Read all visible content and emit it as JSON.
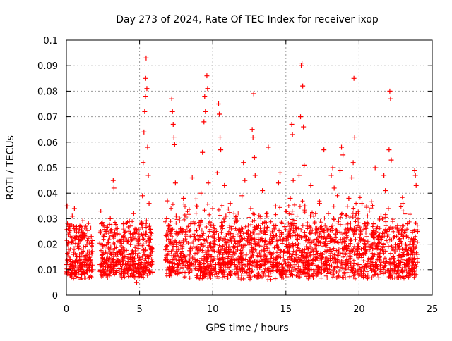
{
  "chart_data": {
    "type": "scatter",
    "title": "Day 273 of 2024, Rate Of TEC Index for receiver ixop",
    "xlabel": "GPS time / hours",
    "ylabel": "ROTI / TECUs",
    "xlim": [
      0,
      25
    ],
    "ylim": [
      0,
      0.1
    ],
    "xticks": [
      "0",
      "5",
      "10",
      "15",
      "20",
      "25"
    ],
    "xtick_values": [
      0,
      5,
      10,
      15,
      20,
      25
    ],
    "yticks": [
      "0",
      "0.01",
      "0.02",
      "0.03",
      "0.04",
      "0.05",
      "0.06",
      "0.07",
      "0.08",
      "0.09",
      "0.1"
    ],
    "ytick_values": [
      0,
      0.01,
      0.02,
      0.03,
      0.04,
      0.05,
      0.06,
      0.07,
      0.08,
      0.09,
      0.1
    ],
    "grid": true,
    "marker": "+",
    "color": "#ff0000",
    "series": [
      {
        "points": [
          [
            0.0,
            0.012
          ],
          [
            0.05,
            0.035
          ],
          [
            0.1,
            0.009
          ],
          [
            0.15,
            0.018
          ],
          [
            0.2,
            0.027
          ],
          [
            0.25,
            0.014
          ],
          [
            0.3,
            0.008
          ],
          [
            0.35,
            0.021
          ],
          [
            0.4,
            0.031
          ],
          [
            0.45,
            0.011
          ],
          [
            0.5,
            0.016
          ],
          [
            0.55,
            0.034
          ],
          [
            0.6,
            0.009
          ],
          [
            0.65,
            0.019
          ],
          [
            0.7,
            0.026
          ],
          [
            0.75,
            0.013
          ],
          [
            0.8,
            0.007
          ],
          [
            0.85,
            0.022
          ],
          [
            0.9,
            0.015
          ],
          [
            0.95,
            0.01
          ],
          [
            1.0,
            0.018
          ],
          [
            1.05,
            0.012
          ],
          [
            1.1,
            0.024
          ],
          [
            1.2,
            0.009
          ],
          [
            1.3,
            0.014
          ],
          [
            1.4,
            0.02
          ],
          [
            1.5,
            0.011
          ],
          [
            1.6,
            0.016
          ],
          [
            1.7,
            0.023
          ],
          [
            1.75,
            0.01
          ],
          [
            2.3,
            0.012
          ],
          [
            2.35,
            0.033
          ],
          [
            2.4,
            0.028
          ],
          [
            2.45,
            0.009
          ],
          [
            2.5,
            0.019
          ],
          [
            2.6,
            0.014
          ],
          [
            2.7,
            0.025
          ],
          [
            2.8,
            0.011
          ],
          [
            2.9,
            0.017
          ],
          [
            3.0,
            0.03
          ],
          [
            3.1,
            0.013
          ],
          [
            3.2,
            0.045
          ],
          [
            3.25,
            0.042
          ],
          [
            3.3,
            0.02
          ],
          [
            3.4,
            0.009
          ],
          [
            3.5,
            0.016
          ],
          [
            3.6,
            0.024
          ],
          [
            3.7,
            0.012
          ],
          [
            3.8,
            0.018
          ],
          [
            3.9,
            0.028
          ],
          [
            4.0,
            0.015
          ],
          [
            4.1,
            0.01
          ],
          [
            4.2,
            0.021
          ],
          [
            4.3,
            0.029
          ],
          [
            4.4,
            0.013
          ],
          [
            4.5,
            0.017
          ],
          [
            4.6,
            0.032
          ],
          [
            4.7,
            0.011
          ],
          [
            4.8,
            0.005
          ],
          [
            4.9,
            0.02
          ],
          [
            5.1,
            0.014
          ],
          [
            5.15,
            0.028
          ],
          [
            5.2,
            0.039
          ],
          [
            5.25,
            0.052
          ],
          [
            5.3,
            0.064
          ],
          [
            5.35,
            0.072
          ],
          [
            5.4,
            0.078
          ],
          [
            5.42,
            0.085
          ],
          [
            5.45,
            0.093
          ],
          [
            5.5,
            0.081
          ],
          [
            5.55,
            0.058
          ],
          [
            5.6,
            0.047
          ],
          [
            5.65,
            0.036
          ],
          [
            5.7,
            0.022
          ],
          [
            5.75,
            0.012
          ],
          [
            5.8,
            0.018
          ],
          [
            6.8,
            0.014
          ],
          [
            6.85,
            0.03
          ],
          [
            6.9,
            0.037
          ],
          [
            7.0,
            0.022
          ],
          [
            7.05,
            0.011
          ],
          [
            7.1,
            0.025
          ],
          [
            7.2,
            0.077
          ],
          [
            7.25,
            0.072
          ],
          [
            7.3,
            0.067
          ],
          [
            7.35,
            0.062
          ],
          [
            7.4,
            0.059
          ],
          [
            7.45,
            0.044
          ],
          [
            7.5,
            0.031
          ],
          [
            7.6,
            0.012
          ],
          [
            7.7,
            0.018
          ],
          [
            7.8,
            0.026
          ],
          [
            7.9,
            0.009
          ],
          [
            8.0,
            0.038
          ],
          [
            8.1,
            0.015
          ],
          [
            8.2,
            0.021
          ],
          [
            8.3,
            0.011
          ],
          [
            8.4,
            0.016
          ],
          [
            8.5,
            0.028
          ],
          [
            8.6,
            0.046
          ],
          [
            8.7,
            0.019
          ],
          [
            8.8,
            0.013
          ],
          [
            8.9,
            0.035
          ],
          [
            9.0,
            0.022
          ],
          [
            9.1,
            0.012
          ],
          [
            9.2,
            0.04
          ],
          [
            9.3,
            0.056
          ],
          [
            9.4,
            0.068
          ],
          [
            9.45,
            0.078
          ],
          [
            9.5,
            0.072
          ],
          [
            9.6,
            0.086
          ],
          [
            9.65,
            0.081
          ],
          [
            9.7,
            0.044
          ],
          [
            9.8,
            0.025
          ],
          [
            9.9,
            0.015
          ],
          [
            10.0,
            0.034
          ],
          [
            10.1,
            0.021
          ],
          [
            10.2,
            0.012
          ],
          [
            10.3,
            0.048
          ],
          [
            10.4,
            0.075
          ],
          [
            10.45,
            0.071
          ],
          [
            10.5,
            0.062
          ],
          [
            10.55,
            0.057
          ],
          [
            10.6,
            0.027
          ],
          [
            10.7,
            0.016
          ],
          [
            10.8,
            0.043
          ],
          [
            10.9,
            0.031
          ],
          [
            11.0,
            0.011
          ],
          [
            11.1,
            0.019
          ],
          [
            11.2,
            0.036
          ],
          [
            11.3,
            0.014
          ],
          [
            11.4,
            0.023
          ],
          [
            11.5,
            0.012
          ],
          [
            11.6,
            0.029
          ],
          [
            11.7,
            0.018
          ],
          [
            11.8,
            0.01
          ],
          [
            11.9,
            0.025
          ],
          [
            12.0,
            0.039
          ],
          [
            12.1,
            0.052
          ],
          [
            12.2,
            0.045
          ],
          [
            12.3,
            0.016
          ],
          [
            12.4,
            0.021
          ],
          [
            12.5,
            0.012
          ],
          [
            12.6,
            0.034
          ],
          [
            12.7,
            0.065
          ],
          [
            12.75,
            0.062
          ],
          [
            12.8,
            0.079
          ],
          [
            12.85,
            0.054
          ],
          [
            12.9,
            0.047
          ],
          [
            13.0,
            0.027
          ],
          [
            13.1,
            0.015
          ],
          [
            13.2,
            0.011
          ],
          [
            13.3,
            0.022
          ],
          [
            13.4,
            0.041
          ],
          [
            13.5,
            0.018
          ],
          [
            13.6,
            0.013
          ],
          [
            13.7,
            0.031
          ],
          [
            13.8,
            0.058
          ],
          [
            13.9,
            0.021
          ],
          [
            14.0,
            0.016
          ],
          [
            14.1,
            0.012
          ],
          [
            14.2,
            0.026
          ],
          [
            14.3,
            0.035
          ],
          [
            14.4,
            0.019
          ],
          [
            14.5,
            0.044
          ],
          [
            14.6,
            0.048
          ],
          [
            14.7,
            0.024
          ],
          [
            14.8,
            0.011
          ],
          [
            14.9,
            0.017
          ],
          [
            15.0,
            0.033
          ],
          [
            15.1,
            0.014
          ],
          [
            15.2,
            0.02
          ],
          [
            15.3,
            0.038
          ],
          [
            15.4,
            0.067
          ],
          [
            15.45,
            0.063
          ],
          [
            15.5,
            0.045
          ],
          [
            15.6,
            0.028
          ],
          [
            15.7,
            0.016
          ],
          [
            15.8,
            0.022
          ],
          [
            15.9,
            0.047
          ],
          [
            16.0,
            0.07
          ],
          [
            16.05,
            0.09
          ],
          [
            16.1,
            0.091
          ],
          [
            16.15,
            0.082
          ],
          [
            16.2,
            0.066
          ],
          [
            16.25,
            0.051
          ],
          [
            16.3,
            0.035
          ],
          [
            16.4,
            0.019
          ],
          [
            16.5,
            0.012
          ],
          [
            16.6,
            0.027
          ],
          [
            16.7,
            0.043
          ],
          [
            16.8,
            0.018
          ],
          [
            16.9,
            0.031
          ],
          [
            17.0,
            0.014
          ],
          [
            17.1,
            0.022
          ],
          [
            17.2,
            0.011
          ],
          [
            17.3,
            0.036
          ],
          [
            17.4,
            0.025
          ],
          [
            17.5,
            0.016
          ],
          [
            17.6,
            0.057
          ],
          [
            17.7,
            0.021
          ],
          [
            17.8,
            0.012
          ],
          [
            17.9,
            0.032
          ],
          [
            18.0,
            0.018
          ],
          [
            18.1,
            0.047
          ],
          [
            18.2,
            0.05
          ],
          [
            18.3,
            0.042
          ],
          [
            18.4,
            0.024
          ],
          [
            18.5,
            0.013
          ],
          [
            18.6,
            0.029
          ],
          [
            18.7,
            0.049
          ],
          [
            18.8,
            0.058
          ],
          [
            18.9,
            0.055
          ],
          [
            19.0,
            0.021
          ],
          [
            19.1,
            0.012
          ],
          [
            19.2,
            0.026
          ],
          [
            19.3,
            0.038
          ],
          [
            19.4,
            0.015
          ],
          [
            19.5,
            0.046
          ],
          [
            19.6,
            0.052
          ],
          [
            19.65,
            0.085
          ],
          [
            19.7,
            0.062
          ],
          [
            19.8,
            0.032
          ],
          [
            19.9,
            0.019
          ],
          [
            20.0,
            0.012
          ],
          [
            20.1,
            0.024
          ],
          [
            20.2,
            0.036
          ],
          [
            20.3,
            0.016
          ],
          [
            20.4,
            0.028
          ],
          [
            20.5,
            0.011
          ],
          [
            20.6,
            0.021
          ],
          [
            20.7,
            0.033
          ],
          [
            20.8,
            0.014
          ],
          [
            20.9,
            0.019
          ],
          [
            21.0,
            0.028
          ],
          [
            21.1,
            0.05
          ],
          [
            21.2,
            0.012
          ],
          [
            21.3,
            0.022
          ],
          [
            21.4,
            0.015
          ],
          [
            21.5,
            0.031
          ],
          [
            21.6,
            0.018
          ],
          [
            21.7,
            0.047
          ],
          [
            21.8,
            0.041
          ],
          [
            21.9,
            0.025
          ],
          [
            22.0,
            0.034
          ],
          [
            22.05,
            0.057
          ],
          [
            22.1,
            0.08
          ],
          [
            22.15,
            0.077
          ],
          [
            22.2,
            0.053
          ],
          [
            22.3,
            0.029
          ],
          [
            22.4,
            0.013
          ],
          [
            22.5,
            0.019
          ],
          [
            22.6,
            0.026
          ],
          [
            22.7,
            0.011
          ],
          [
            22.8,
            0.016
          ],
          [
            22.9,
            0.024
          ],
          [
            23.0,
            0.036
          ],
          [
            23.1,
            0.012
          ],
          [
            23.2,
            0.018
          ],
          [
            23.3,
            0.028
          ],
          [
            23.4,
            0.014
          ],
          [
            23.5,
            0.021
          ],
          [
            23.6,
            0.01
          ],
          [
            23.7,
            0.019
          ],
          [
            23.8,
            0.049
          ],
          [
            23.85,
            0.047
          ],
          [
            23.9,
            0.043
          ],
          [
            23.95,
            0.016
          ],
          [
            24.0,
            0.025
          ]
        ]
      }
    ]
  }
}
